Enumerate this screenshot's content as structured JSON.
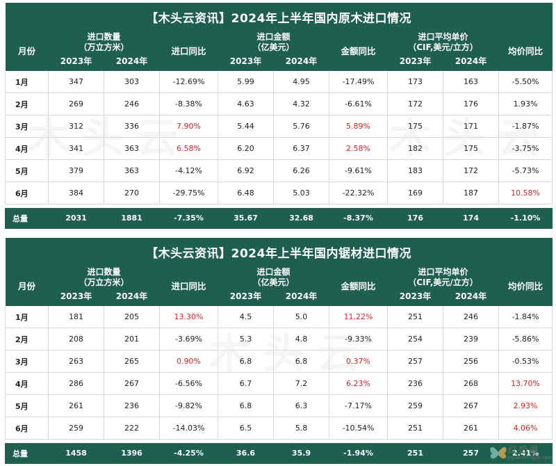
{
  "table1": {
    "title": "【木头云资讯】2024年上半年国内原木进口情况",
    "month_header": "月份",
    "group1": [
      "进口数量",
      "（万立方米）"
    ],
    "group2": [
      "进口金额",
      "（亿美元）"
    ],
    "group3": [
      "进口平均单价",
      "（CIF,美元/立方）"
    ],
    "yoy_qty": "进口同比",
    "yoy_amt": "金额同比",
    "yoy_price": "均价同比",
    "year_a": "2023年",
    "year_b": "2024年",
    "rows": [
      {
        "m": "1月",
        "q23": "347",
        "q24": "303",
        "qy": "-12.69%",
        "a23": "5.99",
        "a24": "4.95",
        "ay": "-17.49%",
        "p23": "173",
        "p24": "163",
        "py": "-5.50%"
      },
      {
        "m": "2月",
        "q23": "269",
        "q24": "246",
        "qy": "-8.38%",
        "a23": "4.63",
        "a24": "4.32",
        "ay": "-6.61%",
        "p23": "172",
        "p24": "176",
        "py": "1.93%"
      },
      {
        "m": "3月",
        "q23": "312",
        "q24": "336",
        "qy": "7.90%",
        "a23": "5.44",
        "a24": "5.76",
        "ay": "5.89%",
        "p23": "175",
        "p24": "171",
        "py": "-1.87%"
      },
      {
        "m": "4月",
        "q23": "341",
        "q24": "363",
        "qy": "6.58%",
        "a23": "6.20",
        "a24": "6.37",
        "ay": "2.58%",
        "p23": "182",
        "p24": "175",
        "py": "-3.75%"
      },
      {
        "m": "5月",
        "q23": "379",
        "q24": "363",
        "qy": "-4.12%",
        "a23": "6.92",
        "a24": "6.26",
        "ay": "-9.61%",
        "p23": "183",
        "p24": "172",
        "py": "-5.73%"
      },
      {
        "m": "6月",
        "q23": "384",
        "q24": "270",
        "qy": "-29.75%",
        "a23": "6.48",
        "a24": "5.03",
        "ay": "-22.32%",
        "p23": "169",
        "p24": "187",
        "py": "10.58%"
      }
    ],
    "total": {
      "m": "总量",
      "q23": "2031",
      "q24": "1881",
      "qy": "-7.35%",
      "a23": "35.67",
      "a24": "32.68",
      "ay": "-8.37%",
      "p23": "176",
      "p24": "174",
      "py": "-1.10%"
    },
    "red_cells": [
      [
        "2",
        "qy"
      ],
      [
        "2",
        "ay"
      ],
      [
        "3",
        "qy"
      ],
      [
        "3",
        "ay"
      ],
      [
        "5",
        "py"
      ]
    ]
  },
  "table2": {
    "title": "【木头云资讯】2024年上半年国内锯材进口情况",
    "month_header": "月份",
    "group1": [
      "进口数量",
      "（万立方米）"
    ],
    "group2": [
      "进口金额",
      "（亿美元）"
    ],
    "group3": [
      "进口平均单价",
      "（CIF,美元/立方）"
    ],
    "yoy_qty": "进口同比",
    "yoy_amt": "金额同比",
    "yoy_price": "均价同比",
    "year_a": "2023年",
    "year_b": "2024年",
    "rows": [
      {
        "m": "1月",
        "q23": "181",
        "q24": "205",
        "qy": "13.30%",
        "a23": "4.5",
        "a24": "5.0",
        "ay": "11.22%",
        "p23": "251",
        "p24": "246",
        "py": "-1.84%"
      },
      {
        "m": "2月",
        "q23": "208",
        "q24": "201",
        "qy": "-3.69%",
        "a23": "5.3",
        "a24": "4.8",
        "ay": "-9.33%",
        "p23": "254",
        "p24": "239",
        "py": "-5.86%"
      },
      {
        "m": "3月",
        "q23": "263",
        "q24": "265",
        "qy": "0.90%",
        "a23": "6.8",
        "a24": "6.8",
        "ay": "0.37%",
        "p23": "257",
        "p24": "256",
        "py": "-0.53%"
      },
      {
        "m": "4月",
        "q23": "286",
        "q24": "267",
        "qy": "-6.56%",
        "a23": "6.7",
        "a24": "7.2",
        "ay": "6.23%",
        "p23": "236",
        "p24": "268",
        "py": "13.70%"
      },
      {
        "m": "5月",
        "q23": "261",
        "q24": "236",
        "qy": "-9.82%",
        "a23": "6.8",
        "a24": "6.3",
        "ay": "-7.17%",
        "p23": "259",
        "p24": "267",
        "py": "2.93%"
      },
      {
        "m": "6月",
        "q23": "259",
        "q24": "222",
        "qy": "-14.03%",
        "a23": "6.5",
        "a24": "5.8",
        "ay": "-10.54%",
        "p23": "251",
        "p24": "261",
        "py": "4.06%"
      }
    ],
    "total": {
      "m": "总量",
      "q23": "1458",
      "q24": "1396",
      "qy": "-4.25%",
      "a23": "36.6",
      "a24": "35.9",
      "ay": "-1.94%",
      "p23": "251",
      "p24": "257",
      "py": "2.41%"
    },
    "red_cells": [
      [
        "0",
        "qy"
      ],
      [
        "0",
        "ay"
      ],
      [
        "2",
        "qy"
      ],
      [
        "2",
        "ay"
      ],
      [
        "3",
        "ay"
      ],
      [
        "3",
        "py"
      ],
      [
        "4",
        "py"
      ],
      [
        "5",
        "py"
      ]
    ]
  },
  "watermark": "木头云",
  "logo": {
    "text": "红奶兽",
    "sub": "yquanmingjin.com"
  },
  "colors": {
    "header": "#1f5f4f",
    "positive": "#e02020",
    "text": "#222222"
  }
}
